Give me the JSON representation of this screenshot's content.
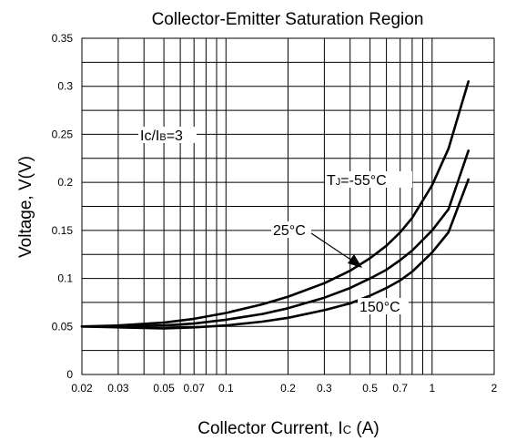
{
  "chart_data": {
    "type": "line",
    "title": "Collector-Emitter Saturation Region",
    "xlabel": "Collector Current, I",
    "xlabel_sub": "C",
    "xlabel_unit": "(A)",
    "ylabel": "Voltage, V(V)",
    "x_scale": "log",
    "xlim": [
      0.02,
      2
    ],
    "ylim": [
      0,
      0.35
    ],
    "grid": true,
    "x_ticks": [
      {
        "value": 0.02,
        "label": "0.02"
      },
      {
        "value": 0.03,
        "label": "0.03"
      },
      {
        "value": 0.05,
        "label": "0.05"
      },
      {
        "value": 0.07,
        "label": "0.07"
      },
      {
        "value": 0.1,
        "label": "0.1"
      },
      {
        "value": 0.2,
        "label": "0.2"
      },
      {
        "value": 0.3,
        "label": "0.3"
      },
      {
        "value": 0.5,
        "label": "0.5"
      },
      {
        "value": 0.7,
        "label": "0.7"
      },
      {
        "value": 1,
        "label": "1"
      },
      {
        "value": 2,
        "label": "2"
      }
    ],
    "y_ticks": [
      {
        "value": 0,
        "label": "0"
      },
      {
        "value": 0.05,
        "label": "0.05"
      },
      {
        "value": 0.1,
        "label": "0.1"
      },
      {
        "value": 0.15,
        "label": "0.15"
      },
      {
        "value": 0.2,
        "label": "0.2"
      },
      {
        "value": 0.25,
        "label": "0.25"
      },
      {
        "value": 0.3,
        "label": "0.3"
      },
      {
        "value": 0.35,
        "label": "0.35"
      }
    ],
    "series": [
      {
        "name": "TJ=-55°C",
        "x": [
          0.02,
          0.03,
          0.05,
          0.07,
          0.1,
          0.15,
          0.2,
          0.3,
          0.4,
          0.5,
          0.6,
          0.7,
          0.8,
          1.0,
          1.2,
          1.5
        ],
        "y": [
          0.05,
          0.051,
          0.054,
          0.058,
          0.064,
          0.073,
          0.081,
          0.095,
          0.108,
          0.121,
          0.134,
          0.148,
          0.163,
          0.197,
          0.235,
          0.305
        ]
      },
      {
        "name": "25°C",
        "x": [
          0.02,
          0.03,
          0.05,
          0.07,
          0.1,
          0.15,
          0.2,
          0.3,
          0.4,
          0.5,
          0.6,
          0.7,
          0.8,
          1.0,
          1.2,
          1.5
        ],
        "y": [
          0.05,
          0.05,
          0.051,
          0.053,
          0.057,
          0.063,
          0.069,
          0.08,
          0.09,
          0.1,
          0.109,
          0.119,
          0.129,
          0.15,
          0.172,
          0.233
        ]
      },
      {
        "name": "150°C",
        "x": [
          0.02,
          0.03,
          0.05,
          0.07,
          0.1,
          0.15,
          0.2,
          0.3,
          0.4,
          0.5,
          0.6,
          0.7,
          0.8,
          1.0,
          1.2,
          1.5
        ],
        "y": [
          0.05,
          0.049,
          0.048,
          0.049,
          0.051,
          0.055,
          0.059,
          0.067,
          0.074,
          0.082,
          0.09,
          0.098,
          0.107,
          0.127,
          0.148,
          0.203
        ]
      }
    ],
    "annotations": [
      {
        "text": "Ic/IB=3",
        "main": "Ic/I",
        "sub": "B",
        "rest": "=3"
      },
      {
        "text": "TJ=-55°C",
        "main": "T",
        "sub": "J",
        "rest": "=-55°C"
      },
      {
        "text": "25°C"
      },
      {
        "text": "150°C"
      }
    ]
  }
}
